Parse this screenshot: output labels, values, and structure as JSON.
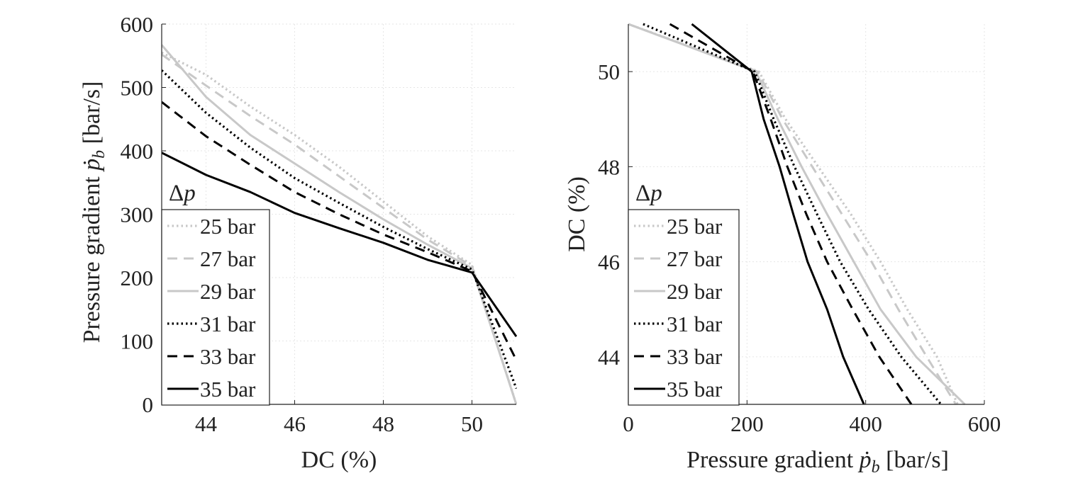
{
  "chart_data": [
    {
      "type": "line",
      "xlabel": "DC (%)",
      "ylabel": "Pressure gradient ṗ_b [bar/s]",
      "ylabel_parts": {
        "before": "Pressure gradient ",
        "var": "ṗ",
        "sub": "b",
        "after": " [bar/s]"
      },
      "xlim": [
        43,
        51
      ],
      "ylim": [
        0,
        600
      ],
      "xticks": [
        44,
        46,
        48,
        50
      ],
      "yticks": [
        0,
        100,
        200,
        300,
        400,
        500,
        600
      ],
      "grid": true,
      "legend": {
        "title": "Δp",
        "title_var": "p",
        "placement": "left"
      },
      "series": [
        {
          "name": "25 bar",
          "style": "dotted",
          "color": "#c8c8c8",
          "x": [
            43,
            44,
            45,
            46,
            47,
            48,
            49,
            50,
            51
          ],
          "y": [
            555,
            520,
            470,
            425,
            375,
            320,
            265,
            220,
            0
          ]
        },
        {
          "name": "27 bar",
          "style": "dashed",
          "color": "#c8c8c8",
          "x": [
            43,
            44,
            45,
            46,
            47,
            48,
            49,
            50,
            51
          ],
          "y": [
            552,
            503,
            455,
            410,
            360,
            310,
            260,
            218,
            0
          ]
        },
        {
          "name": "29 bar",
          "style": "solid",
          "color": "#c8c8c8",
          "x": [
            43,
            44,
            45,
            46,
            47,
            48,
            49,
            50,
            51
          ],
          "y": [
            567,
            485,
            425,
            380,
            335,
            292,
            252,
            215,
            0
          ]
        },
        {
          "name": "31 bar",
          "style": "dotted",
          "color": "#000000",
          "x": [
            43,
            44,
            45,
            46,
            47,
            48,
            49,
            50,
            51
          ],
          "y": [
            527,
            460,
            405,
            357,
            318,
            280,
            245,
            213,
            25
          ]
        },
        {
          "name": "33 bar",
          "style": "dashed",
          "color": "#000000",
          "x": [
            43,
            44,
            45,
            46,
            47,
            48,
            49,
            50,
            51
          ],
          "y": [
            477,
            423,
            378,
            335,
            300,
            268,
            240,
            210,
            70
          ]
        },
        {
          "name": "35 bar",
          "style": "solid",
          "color": "#000000",
          "x": [
            43,
            44,
            45,
            46,
            47,
            48,
            49,
            50,
            51
          ],
          "y": [
            397,
            362,
            335,
            302,
            278,
            255,
            228,
            208,
            107
          ]
        }
      ]
    },
    {
      "type": "line",
      "xlabel": "Pressure gradient ṗ_b [bar/s]",
      "xlabel_parts": {
        "before": "Pressure gradient ",
        "var": "ṗ",
        "sub": "b",
        "after": " [bar/s]"
      },
      "ylabel": "DC (%)",
      "xlim": [
        0,
        600
      ],
      "ylim": [
        43,
        51
      ],
      "xticks": [
        0,
        200,
        400,
        600
      ],
      "yticks": [
        44,
        46,
        48,
        50
      ],
      "grid": true,
      "legend": {
        "title": "Δp",
        "title_var": "p",
        "placement": "left"
      },
      "series": [
        {
          "name": "25 bar",
          "style": "dotted",
          "color": "#c8c8c8",
          "x": [
            0,
            220,
            265,
            320,
            375,
            425,
            470,
            520,
            555
          ],
          "y": [
            51,
            50,
            49,
            48,
            47,
            46,
            45,
            44,
            43
          ]
        },
        {
          "name": "27 bar",
          "style": "dashed",
          "color": "#c8c8c8",
          "x": [
            0,
            218,
            260,
            310,
            360,
            410,
            455,
            503,
            552
          ],
          "y": [
            51,
            50,
            49,
            48,
            47,
            46,
            45,
            44,
            43
          ]
        },
        {
          "name": "29 bar",
          "style": "solid",
          "color": "#c8c8c8",
          "x": [
            0,
            215,
            252,
            292,
            335,
            380,
            425,
            485,
            567
          ],
          "y": [
            51,
            50,
            49,
            48,
            47,
            46,
            45,
            44,
            43
          ]
        },
        {
          "name": "31 bar",
          "style": "dotted",
          "color": "#000000",
          "x": [
            25,
            213,
            245,
            280,
            318,
            357,
            405,
            460,
            527
          ],
          "y": [
            51,
            50,
            49,
            48,
            47,
            46,
            45,
            44,
            43
          ]
        },
        {
          "name": "33 bar",
          "style": "dashed",
          "color": "#000000",
          "x": [
            70,
            210,
            240,
            268,
            300,
            335,
            378,
            423,
            477
          ],
          "y": [
            51,
            50,
            49,
            48,
            47,
            46,
            45,
            44,
            43
          ]
        },
        {
          "name": "35 bar",
          "style": "solid",
          "color": "#000000",
          "x": [
            107,
            208,
            228,
            255,
            278,
            302,
            335,
            362,
            397
          ],
          "y": [
            51,
            50,
            49,
            48,
            47,
            46,
            45,
            44,
            43
          ]
        }
      ]
    }
  ]
}
